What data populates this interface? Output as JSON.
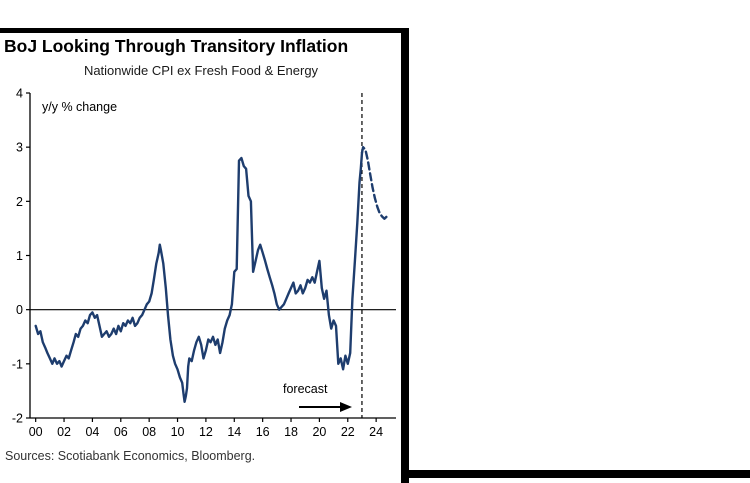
{
  "header": {
    "title": "BoJ Looking Through Transitory Inflation",
    "subtitle": "Nationwide CPI ex Fresh Food & Energy"
  },
  "footer": {
    "sources": "Sources: Scotiabank Economics, Bloomberg."
  },
  "chart_data": {
    "type": "line",
    "title": "BoJ Looking Through Transitory Inflation",
    "subtitle": "Nationwide CPI ex Fresh Food & Energy",
    "unit_label": "y/y % change",
    "forecast_label": "forecast",
    "xlabel": "",
    "ylabel": "",
    "ylim": [
      -2,
      4
    ],
    "xlim": [
      1999.6,
      2025.4
    ],
    "yticks": [
      4,
      3,
      2,
      1,
      0,
      -1,
      -2
    ],
    "xtick_values": [
      2000,
      2002,
      2004,
      2006,
      2008,
      2010,
      2012,
      2014,
      2016,
      2018,
      2020,
      2022,
      2024
    ],
    "xtick_labels": [
      "00",
      "02",
      "04",
      "06",
      "08",
      "10",
      "12",
      "14",
      "16",
      "18",
      "20",
      "22",
      "24"
    ],
    "grid": false,
    "legend": "none",
    "axis_color": "#000000",
    "line_color": "#1e3d6e",
    "forecast_divider_x": 2023.0,
    "series": [
      {
        "name": "Nationwide CPI ex fresh food & energy (actual)",
        "style": "solid",
        "points": [
          [
            2000.0,
            -0.3
          ],
          [
            2000.17,
            -0.45
          ],
          [
            2000.33,
            -0.4
          ],
          [
            2000.5,
            -0.6
          ],
          [
            2000.67,
            -0.7
          ],
          [
            2000.83,
            -0.8
          ],
          [
            2001.0,
            -0.9
          ],
          [
            2001.17,
            -1.0
          ],
          [
            2001.33,
            -0.9
          ],
          [
            2001.5,
            -1.0
          ],
          [
            2001.67,
            -0.95
          ],
          [
            2001.83,
            -1.05
          ],
          [
            2002.0,
            -0.95
          ],
          [
            2002.17,
            -0.85
          ],
          [
            2002.33,
            -0.9
          ],
          [
            2002.5,
            -0.75
          ],
          [
            2002.67,
            -0.6
          ],
          [
            2002.83,
            -0.45
          ],
          [
            2003.0,
            -0.5
          ],
          [
            2003.17,
            -0.35
          ],
          [
            2003.33,
            -0.3
          ],
          [
            2003.5,
            -0.2
          ],
          [
            2003.67,
            -0.25
          ],
          [
            2003.83,
            -0.1
          ],
          [
            2004.0,
            -0.05
          ],
          [
            2004.17,
            -0.15
          ],
          [
            2004.33,
            -0.1
          ],
          [
            2004.5,
            -0.3
          ],
          [
            2004.67,
            -0.5
          ],
          [
            2004.83,
            -0.45
          ],
          [
            2005.0,
            -0.4
          ],
          [
            2005.17,
            -0.5
          ],
          [
            2005.33,
            -0.45
          ],
          [
            2005.5,
            -0.35
          ],
          [
            2005.67,
            -0.45
          ],
          [
            2005.83,
            -0.3
          ],
          [
            2006.0,
            -0.4
          ],
          [
            2006.17,
            -0.25
          ],
          [
            2006.33,
            -0.3
          ],
          [
            2006.5,
            -0.2
          ],
          [
            2006.67,
            -0.25
          ],
          [
            2006.83,
            -0.15
          ],
          [
            2007.0,
            -0.3
          ],
          [
            2007.17,
            -0.25
          ],
          [
            2007.33,
            -0.15
          ],
          [
            2007.5,
            -0.1
          ],
          [
            2007.67,
            0.0
          ],
          [
            2007.83,
            0.1
          ],
          [
            2008.0,
            0.15
          ],
          [
            2008.17,
            0.3
          ],
          [
            2008.33,
            0.55
          ],
          [
            2008.5,
            0.85
          ],
          [
            2008.67,
            1.05
          ],
          [
            2008.75,
            1.2
          ],
          [
            2008.83,
            1.1
          ],
          [
            2009.0,
            0.85
          ],
          [
            2009.17,
            0.4
          ],
          [
            2009.33,
            -0.1
          ],
          [
            2009.5,
            -0.55
          ],
          [
            2009.67,
            -0.85
          ],
          [
            2009.83,
            -1.0
          ],
          [
            2010.0,
            -1.1
          ],
          [
            2010.17,
            -1.25
          ],
          [
            2010.33,
            -1.35
          ],
          [
            2010.42,
            -1.55
          ],
          [
            2010.5,
            -1.7
          ],
          [
            2010.58,
            -1.6
          ],
          [
            2010.67,
            -1.45
          ],
          [
            2010.75,
            -1.05
          ],
          [
            2010.83,
            -0.9
          ],
          [
            2011.0,
            -0.95
          ],
          [
            2011.17,
            -0.75
          ],
          [
            2011.33,
            -0.6
          ],
          [
            2011.5,
            -0.5
          ],
          [
            2011.67,
            -0.65
          ],
          [
            2011.83,
            -0.9
          ],
          [
            2012.0,
            -0.75
          ],
          [
            2012.17,
            -0.55
          ],
          [
            2012.33,
            -0.6
          ],
          [
            2012.5,
            -0.5
          ],
          [
            2012.67,
            -0.65
          ],
          [
            2012.83,
            -0.55
          ],
          [
            2013.0,
            -0.8
          ],
          [
            2013.17,
            -0.6
          ],
          [
            2013.33,
            -0.35
          ],
          [
            2013.5,
            -0.2
          ],
          [
            2013.67,
            -0.1
          ],
          [
            2013.83,
            0.1
          ],
          [
            2014.0,
            0.7
          ],
          [
            2014.17,
            0.75
          ],
          [
            2014.33,
            2.75
          ],
          [
            2014.5,
            2.8
          ],
          [
            2014.67,
            2.65
          ],
          [
            2014.83,
            2.6
          ],
          [
            2015.0,
            2.1
          ],
          [
            2015.17,
            2.0
          ],
          [
            2015.33,
            0.7
          ],
          [
            2015.5,
            0.9
          ],
          [
            2015.67,
            1.1
          ],
          [
            2015.83,
            1.2
          ],
          [
            2016.0,
            1.05
          ],
          [
            2016.17,
            0.9
          ],
          [
            2016.33,
            0.75
          ],
          [
            2016.5,
            0.6
          ],
          [
            2016.67,
            0.45
          ],
          [
            2016.83,
            0.3
          ],
          [
            2017.0,
            0.1
          ],
          [
            2017.17,
            0.0
          ],
          [
            2017.33,
            0.05
          ],
          [
            2017.5,
            0.1
          ],
          [
            2017.67,
            0.2
          ],
          [
            2017.83,
            0.3
          ],
          [
            2018.0,
            0.4
          ],
          [
            2018.17,
            0.5
          ],
          [
            2018.33,
            0.3
          ],
          [
            2018.5,
            0.35
          ],
          [
            2018.67,
            0.45
          ],
          [
            2018.83,
            0.3
          ],
          [
            2019.0,
            0.4
          ],
          [
            2019.17,
            0.55
          ],
          [
            2019.33,
            0.5
          ],
          [
            2019.5,
            0.6
          ],
          [
            2019.67,
            0.5
          ],
          [
            2019.83,
            0.7
          ],
          [
            2020.0,
            0.9
          ],
          [
            2020.17,
            0.4
          ],
          [
            2020.33,
            0.2
          ],
          [
            2020.5,
            0.35
          ],
          [
            2020.67,
            -0.1
          ],
          [
            2020.83,
            -0.35
          ],
          [
            2021.0,
            -0.2
          ],
          [
            2021.17,
            -0.3
          ],
          [
            2021.33,
            -1.0
          ],
          [
            2021.5,
            -0.9
          ],
          [
            2021.67,
            -1.1
          ],
          [
            2021.83,
            -0.85
          ],
          [
            2022.0,
            -1.0
          ],
          [
            2022.17,
            -0.8
          ],
          [
            2022.33,
            0.2
          ],
          [
            2022.5,
            0.9
          ],
          [
            2022.67,
            1.6
          ],
          [
            2022.83,
            2.35
          ],
          [
            2022.92,
            2.6
          ],
          [
            2023.0,
            2.9
          ]
        ]
      },
      {
        "name": "Nationwide CPI ex fresh food & energy (forecast)",
        "style": "dashed",
        "points": [
          [
            2023.0,
            2.9
          ],
          [
            2023.08,
            3.0
          ],
          [
            2023.25,
            2.95
          ],
          [
            2023.42,
            2.75
          ],
          [
            2023.58,
            2.5
          ],
          [
            2023.75,
            2.25
          ],
          [
            2023.92,
            2.05
          ],
          [
            2024.08,
            1.9
          ],
          [
            2024.25,
            1.78
          ],
          [
            2024.42,
            1.72
          ],
          [
            2024.58,
            1.68
          ],
          [
            2024.75,
            1.72
          ],
          [
            2024.92,
            1.76
          ]
        ]
      }
    ]
  }
}
